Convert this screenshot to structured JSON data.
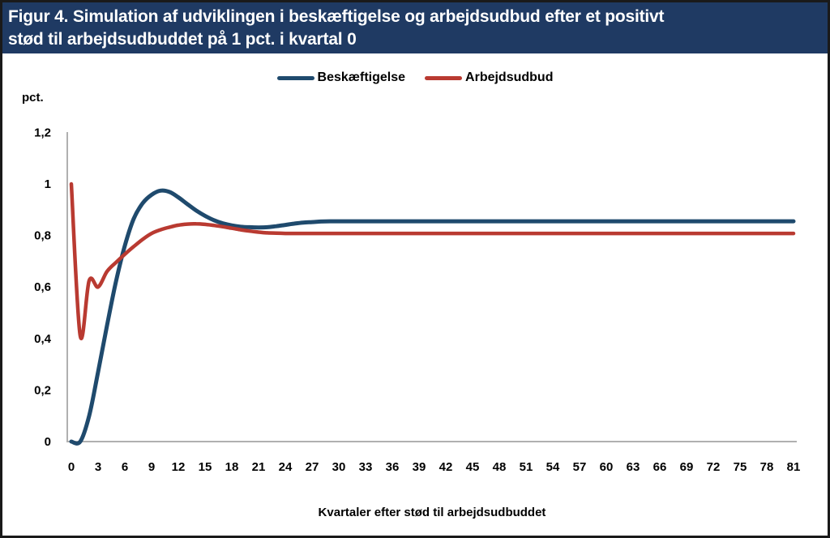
{
  "title": {
    "lines": [
      "Figur 4. Simulation af udviklingen i beskæftigelse og arbejdsudbud efter et positivt",
      "stød til arbejdsudbuddet på 1 pct. i kvartal 0"
    ]
  },
  "colors": {
    "title_bar_bg": "#1f3a63",
    "title_text": "#ffffff",
    "axis_line": "#b0b0b0",
    "tick_text": "#000000",
    "employment_blue": "#1f4a6d",
    "labor_supply_red": "#b93a31"
  },
  "chart_data": {
    "type": "line",
    "title": "Figur 4. Simulation af udviklingen i beskæftigelse og arbejdsudbud efter et positivt stød til arbejdsudbuddet på 1 pct. i kvartal 0",
    "xlabel": "Kvartaler efter stød til arbejdsudbuddet",
    "y_unit": "pct.",
    "grid": false,
    "legend_position": "top-center",
    "x_range": [
      0,
      81
    ],
    "ylim": [
      0,
      1.2
    ],
    "x_tick_step": 3,
    "x_ticks": [
      0,
      3,
      6,
      9,
      12,
      15,
      18,
      21,
      24,
      27,
      30,
      33,
      36,
      39,
      42,
      45,
      48,
      51,
      54,
      57,
      60,
      63,
      66,
      69,
      72,
      75,
      78,
      81
    ],
    "y_ticks": [
      {
        "label": "0",
        "value": 0
      },
      {
        "label": "0,2",
        "value": 0.2
      },
      {
        "label": "0,4",
        "value": 0.4
      },
      {
        "label": "0,6",
        "value": 0.6
      },
      {
        "label": "0,8",
        "value": 0.8
      },
      {
        "label": "1",
        "value": 1
      },
      {
        "label": "1,2",
        "value": 1.2
      }
    ],
    "x": [
      0,
      1,
      2,
      3,
      4,
      5,
      6,
      7,
      8,
      9,
      10,
      11,
      12,
      13,
      14,
      15,
      16,
      17,
      18,
      19,
      20,
      21,
      22,
      23,
      24,
      25,
      26,
      27,
      28,
      29,
      30,
      31,
      32,
      33,
      34,
      35,
      36,
      37,
      38,
      39,
      40,
      41,
      42,
      43,
      44,
      45,
      46,
      47,
      48,
      49,
      50,
      51,
      52,
      53,
      54,
      55,
      56,
      57,
      58,
      59,
      60,
      61,
      62,
      63,
      64,
      65,
      66,
      67,
      68,
      69,
      70,
      71,
      72,
      73,
      74,
      75,
      76,
      77,
      78,
      79,
      80,
      81
    ],
    "series": [
      {
        "name": "Beskæftigelse",
        "color": "#1f4a6d",
        "values": [
          0,
          0,
          0.1,
          0.27,
          0.45,
          0.62,
          0.76,
          0.865,
          0.925,
          0.958,
          0.974,
          0.969,
          0.948,
          0.922,
          0.897,
          0.876,
          0.859,
          0.847,
          0.839,
          0.834,
          0.832,
          0.831,
          0.832,
          0.836,
          0.841,
          0.846,
          0.85,
          0.852,
          0.854,
          0.855,
          0.855,
          0.855,
          0.855,
          0.855,
          0.855,
          0.855,
          0.855,
          0.855,
          0.855,
          0.855,
          0.855,
          0.855,
          0.855,
          0.855,
          0.855,
          0.855,
          0.855,
          0.855,
          0.855,
          0.855,
          0.855,
          0.855,
          0.855,
          0.855,
          0.855,
          0.855,
          0.855,
          0.855,
          0.855,
          0.855,
          0.855,
          0.855,
          0.855,
          0.855,
          0.855,
          0.855,
          0.855,
          0.855,
          0.855,
          0.855,
          0.855,
          0.855,
          0.855,
          0.855,
          0.855,
          0.855,
          0.855,
          0.855,
          0.855,
          0.855,
          0.855,
          0.855
        ]
      },
      {
        "name": "Arbejdsudbud",
        "color": "#b93a31",
        "values": [
          1.0,
          0.41,
          0.625,
          0.6,
          0.66,
          0.695,
          0.727,
          0.757,
          0.785,
          0.808,
          0.822,
          0.832,
          0.84,
          0.844,
          0.845,
          0.843,
          0.839,
          0.834,
          0.828,
          0.822,
          0.817,
          0.813,
          0.81,
          0.809,
          0.808,
          0.808,
          0.808,
          0.808,
          0.808,
          0.808,
          0.808,
          0.808,
          0.808,
          0.808,
          0.808,
          0.808,
          0.808,
          0.808,
          0.808,
          0.808,
          0.808,
          0.808,
          0.808,
          0.808,
          0.808,
          0.808,
          0.808,
          0.808,
          0.808,
          0.808,
          0.808,
          0.808,
          0.808,
          0.808,
          0.808,
          0.808,
          0.808,
          0.808,
          0.808,
          0.808,
          0.808,
          0.808,
          0.808,
          0.808,
          0.808,
          0.808,
          0.808,
          0.808,
          0.808,
          0.808,
          0.808,
          0.808,
          0.808,
          0.808,
          0.808,
          0.808,
          0.808,
          0.808,
          0.808,
          0.808,
          0.808,
          0.808
        ]
      }
    ]
  }
}
